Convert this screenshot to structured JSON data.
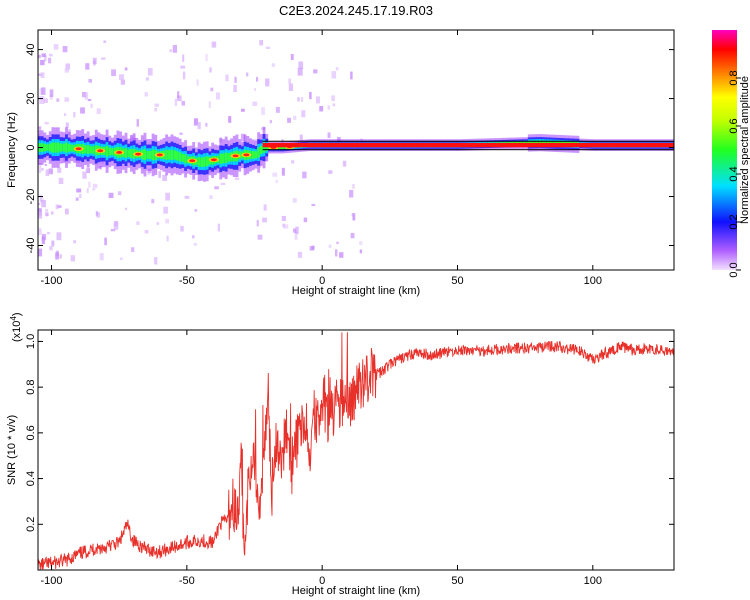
{
  "title": "C2E3.2024.245.17.19.R03",
  "chart_data": [
    {
      "type": "heatmap",
      "xlabel": "Height of straight line (km)",
      "ylabel": "Frequency (Hz)",
      "xlim": [
        -105,
        130
      ],
      "ylim": [
        -50,
        48
      ],
      "xticks": [
        -100,
        -50,
        0,
        50,
        100
      ],
      "yticks": [
        -40,
        -20,
        0,
        20,
        40
      ],
      "grid": false,
      "ridge": {
        "x": [
          -105,
          -95,
          -85,
          -75,
          -65,
          -55,
          -50,
          -45,
          -40,
          -35,
          -30,
          -25,
          -22,
          -15,
          -5,
          0,
          10,
          20,
          50,
          80,
          100,
          130
        ],
        "y": [
          0,
          0,
          -1,
          -2,
          -3,
          -3,
          -5,
          -6,
          -5,
          -4,
          -3,
          -3,
          0,
          0,
          1,
          1,
          1,
          1,
          1,
          2,
          1,
          1
        ]
      },
      "colorbar": {
        "label": "Normalized spectral amplitude",
        "range": [
          0,
          1
        ],
        "ticks": [
          "0.0",
          "0.2",
          "0.4",
          "0.6",
          "0.8"
        ]
      }
    },
    {
      "type": "line",
      "xlabel": "Height of straight line (km)",
      "ylabel": "SNR (10 * v/v)",
      "scale_label": "(x10",
      "scale_exp": "4",
      "scale_close": ")",
      "xlim": [
        -105,
        130
      ],
      "ylim": [
        0,
        1.05
      ],
      "xticks": [
        -100,
        -50,
        0,
        50,
        100
      ],
      "yticks": [
        "0.2",
        "0.4",
        "0.6",
        "0.8",
        "1.0"
      ],
      "series": [
        {
          "color": "#e8302a",
          "x": [
            -105,
            -100,
            -95,
            -90,
            -85,
            -80,
            -75,
            -72,
            -70,
            -65,
            -60,
            -55,
            -50,
            -45,
            -40,
            -38,
            -35,
            -33,
            -31,
            -30,
            -29,
            -27,
            -25,
            -23,
            -21,
            -20,
            -19,
            -17,
            -15,
            -13,
            -11,
            -10,
            -8,
            -6,
            -5,
            -3,
            -1,
            0,
            2,
            4,
            5,
            7,
            9,
            10,
            12,
            15,
            18,
            20,
            25,
            30,
            35,
            40,
            50,
            60,
            70,
            80,
            85,
            90,
            95,
            100,
            105,
            110,
            115,
            120,
            125,
            130
          ],
          "y": [
            0.02,
            0.03,
            0.04,
            0.07,
            0.09,
            0.1,
            0.12,
            0.2,
            0.13,
            0.09,
            0.08,
            0.1,
            0.12,
            0.13,
            0.12,
            0.2,
            0.22,
            0.3,
            0.2,
            0.5,
            0.15,
            0.38,
            0.45,
            0.22,
            0.6,
            0.85,
            0.3,
            0.55,
            0.5,
            0.6,
            0.45,
            0.55,
            0.6,
            0.67,
            0.45,
            0.7,
            0.6,
            0.78,
            0.65,
            0.7,
            0.74,
            0.72,
            0.8,
            0.7,
            0.78,
            0.83,
            0.86,
            0.85,
            0.9,
            0.93,
            0.95,
            0.94,
            0.96,
            0.96,
            0.97,
            0.97,
            0.98,
            0.97,
            0.96,
            0.92,
            0.95,
            0.98,
            0.96,
            0.97,
            0.96,
            0.95
          ]
        }
      ]
    }
  ]
}
